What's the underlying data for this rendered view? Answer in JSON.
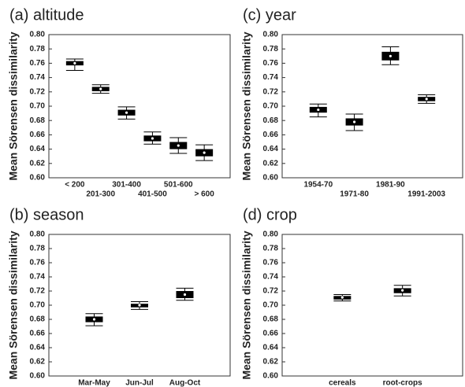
{
  "chart_data": [
    {
      "type": "box",
      "title": "(a) altitude",
      "ylabel": "Mean Sörensen dissimilarity",
      "categories": [
        "< 200",
        "201-300",
        "301-400",
        "401-500",
        "501-600",
        "> 600"
      ],
      "stagger_labels": true,
      "whisker_low": [
        0.75,
        0.718,
        0.682,
        0.647,
        0.634,
        0.624
      ],
      "q1": [
        0.757,
        0.721,
        0.687,
        0.651,
        0.64,
        0.63
      ],
      "median": [
        0.76,
        0.724,
        0.691,
        0.655,
        0.645,
        0.635
      ],
      "q3": [
        0.763,
        0.727,
        0.695,
        0.659,
        0.65,
        0.64
      ],
      "whisker_high": [
        0.766,
        0.73,
        0.699,
        0.664,
        0.656,
        0.646
      ],
      "color": "#000000",
      "ylim": [
        0.6,
        0.8
      ],
      "yticks": [
        {
          "value": 0.6,
          "label": "0.60"
        },
        {
          "value": 0.62,
          "label": "0.62"
        },
        {
          "value": 0.64,
          "label": "0.64"
        },
        {
          "value": 0.66,
          "label": "0.66"
        },
        {
          "value": 0.68,
          "label": "0.68"
        },
        {
          "value": 0.7,
          "label": "0.70"
        },
        {
          "value": 0.72,
          "label": "0.72"
        },
        {
          "value": 0.74,
          "label": "0.74"
        },
        {
          "value": 0.76,
          "label": "0.76"
        },
        {
          "value": 0.78,
          "label": "0.78"
        },
        {
          "value": 0.8,
          "label": "0.80"
        }
      ]
    },
    {
      "type": "box",
      "title": "(c) year",
      "ylabel": "Mean Sörensen dissimilarity",
      "categories": [
        "1954-70",
        "1971-80",
        "1981-90",
        "1991-2003"
      ],
      "stagger_labels": true,
      "whisker_low": [
        0.685,
        0.666,
        0.758,
        0.704
      ],
      "q1": [
        0.691,
        0.673,
        0.764,
        0.707
      ],
      "median": [
        0.695,
        0.678,
        0.77,
        0.71
      ],
      "q3": [
        0.699,
        0.683,
        0.776,
        0.713
      ],
      "whisker_high": [
        0.703,
        0.689,
        0.783,
        0.716
      ],
      "color": "#000000",
      "ylim": [
        0.6,
        0.8
      ],
      "yticks": [
        {
          "value": 0.6,
          "label": "0.60"
        },
        {
          "value": 0.62,
          "label": "0.62"
        },
        {
          "value": 0.64,
          "label": "0.64"
        },
        {
          "value": 0.66,
          "label": "0.66"
        },
        {
          "value": 0.68,
          "label": "0.68"
        },
        {
          "value": 0.7,
          "label": "0.70"
        },
        {
          "value": 0.72,
          "label": "0.72"
        },
        {
          "value": 0.74,
          "label": "0.74"
        },
        {
          "value": 0.76,
          "label": "0.76"
        },
        {
          "value": 0.78,
          "label": "0.78"
        },
        {
          "value": 0.8,
          "label": "0.80"
        }
      ]
    },
    {
      "type": "box",
      "title": "(b) season",
      "ylabel": "Mean Sörensen dissimilarity",
      "categories": [
        "Mar-May",
        "Jun-Jul",
        "Aug-Oct"
      ],
      "stagger_labels": false,
      "whisker_low": [
        0.671,
        0.694,
        0.707
      ],
      "q1": [
        0.676,
        0.697,
        0.71
      ],
      "median": [
        0.68,
        0.7,
        0.715
      ],
      "q3": [
        0.684,
        0.702,
        0.72
      ],
      "whisker_high": [
        0.688,
        0.705,
        0.724
      ],
      "color": "#000000",
      "ylim": [
        0.6,
        0.8
      ],
      "yticks": [
        {
          "value": 0.6,
          "label": "0.60"
        },
        {
          "value": 0.62,
          "label": "0.62"
        },
        {
          "value": 0.64,
          "label": "0.64"
        },
        {
          "value": 0.66,
          "label": "0.66"
        },
        {
          "value": 0.68,
          "label": "0.68"
        },
        {
          "value": 0.7,
          "label": "0.70"
        },
        {
          "value": 0.72,
          "label": "0.72"
        },
        {
          "value": 0.74,
          "label": "0.74"
        },
        {
          "value": 0.76,
          "label": "0.76"
        },
        {
          "value": 0.78,
          "label": "0.78"
        },
        {
          "value": 0.8,
          "label": "0.80"
        }
      ]
    },
    {
      "type": "box",
      "title": "(d) crop",
      "ylabel": "Mean Sörensen dissimilarity",
      "categories": [
        "cereals",
        "root-crops"
      ],
      "stagger_labels": false,
      "whisker_low": [
        0.706,
        0.713
      ],
      "q1": [
        0.708,
        0.717
      ],
      "median": [
        0.711,
        0.721
      ],
      "q3": [
        0.713,
        0.724
      ],
      "whisker_high": [
        0.715,
        0.728
      ],
      "color": "#000000",
      "ylim": [
        0.6,
        0.8
      ],
      "yticks": [
        {
          "value": 0.6,
          "label": "0.60"
        },
        {
          "value": 0.62,
          "label": "0.62"
        },
        {
          "value": 0.64,
          "label": "0.64"
        },
        {
          "value": 0.66,
          "label": "0.66"
        },
        {
          "value": 0.68,
          "label": "0.68"
        },
        {
          "value": 0.7,
          "label": "0.70"
        },
        {
          "value": 0.72,
          "label": "0.72"
        },
        {
          "value": 0.74,
          "label": "0.74"
        },
        {
          "value": 0.76,
          "label": "0.76"
        },
        {
          "value": 0.78,
          "label": "0.78"
        },
        {
          "value": 0.8,
          "label": "0.80"
        }
      ]
    }
  ]
}
